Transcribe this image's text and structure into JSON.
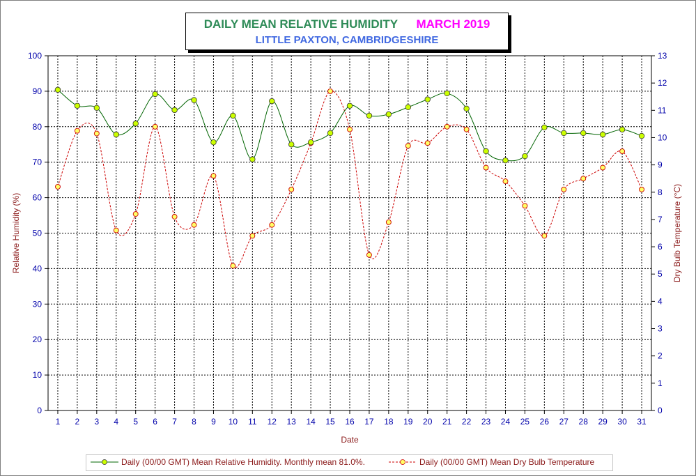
{
  "title": {
    "main": "DAILY MEAN RELATIVE HUMIDITY",
    "month": "MARCH 2019",
    "subtitle": "LITTLE PAXTON, CAMBRIDGESHIRE"
  },
  "colors": {
    "humidity_line": "#006400",
    "humidity_marker": "#ccff00",
    "temp_line": "#cc0000",
    "temp_marker": "#ffff66",
    "axis_label": "#8b1a1a",
    "tick_label": "#0000aa",
    "title_green": "#2e8b57",
    "title_magenta": "#ff00ff",
    "subtitle_blue": "#4169e1"
  },
  "chart_data": {
    "type": "line",
    "xlabel": "Date",
    "ylabel_left": "Relative Humidity (%)",
    "ylabel_right": "Dry Bulb Temperature (°C)",
    "ylim_left": [
      0,
      100
    ],
    "ylim_right": [
      0,
      13
    ],
    "left_ticks": [
      0,
      10,
      20,
      30,
      40,
      50,
      60,
      70,
      80,
      90,
      100
    ],
    "right_ticks": [
      0,
      1,
      2,
      3,
      4,
      5,
      6,
      7,
      8,
      9,
      10,
      11,
      12,
      13
    ],
    "x": [
      1,
      2,
      3,
      4,
      5,
      6,
      7,
      8,
      9,
      10,
      11,
      12,
      13,
      14,
      15,
      16,
      17,
      18,
      19,
      20,
      21,
      22,
      23,
      24,
      25,
      26,
      27,
      28,
      29,
      30,
      31
    ],
    "grid": true,
    "legend_position": "bottom",
    "series": [
      {
        "name": "Daily (00/00 GMT) Mean Relative Humidity. Monthly mean 81.0%.",
        "axis": "left",
        "style": "solid",
        "values": [
          90.4,
          85.9,
          85.3,
          77.8,
          80.9,
          89.2,
          84.7,
          87.5,
          75.6,
          83.1,
          70.8,
          87.2,
          75.0,
          75.6,
          78.2,
          85.9,
          83.1,
          83.5,
          85.5,
          87.7,
          89.4,
          85.1,
          73.1,
          70.5,
          71.7,
          79.8,
          78.2,
          78.2,
          77.8,
          79.2,
          77.4
        ]
      },
      {
        "name": "Daily (00/00 GMT) Mean Dry Bulb Temperature",
        "axis": "right",
        "style": "dashed",
        "values": [
          8.2,
          10.25,
          10.15,
          6.6,
          7.2,
          10.4,
          7.1,
          6.8,
          8.6,
          5.3,
          6.4,
          6.8,
          8.1,
          9.8,
          11.7,
          10.3,
          5.7,
          6.9,
          9.7,
          9.8,
          10.4,
          10.3,
          8.9,
          8.4,
          7.5,
          6.4,
          8.1,
          8.5,
          8.9,
          9.5,
          8.1
        ]
      }
    ]
  }
}
